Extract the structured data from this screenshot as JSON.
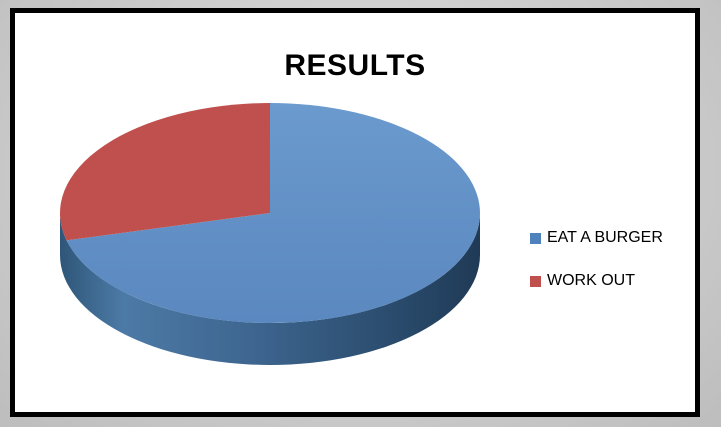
{
  "chart_data": {
    "type": "pie",
    "title": "RESULTS",
    "categories": [
      "EAT A BURGER",
      "WORK OUT"
    ],
    "values": [
      71,
      29
    ],
    "colors": [
      "#4f81bd",
      "#c0504d"
    ],
    "legend_position": "right",
    "three_d": true
  }
}
